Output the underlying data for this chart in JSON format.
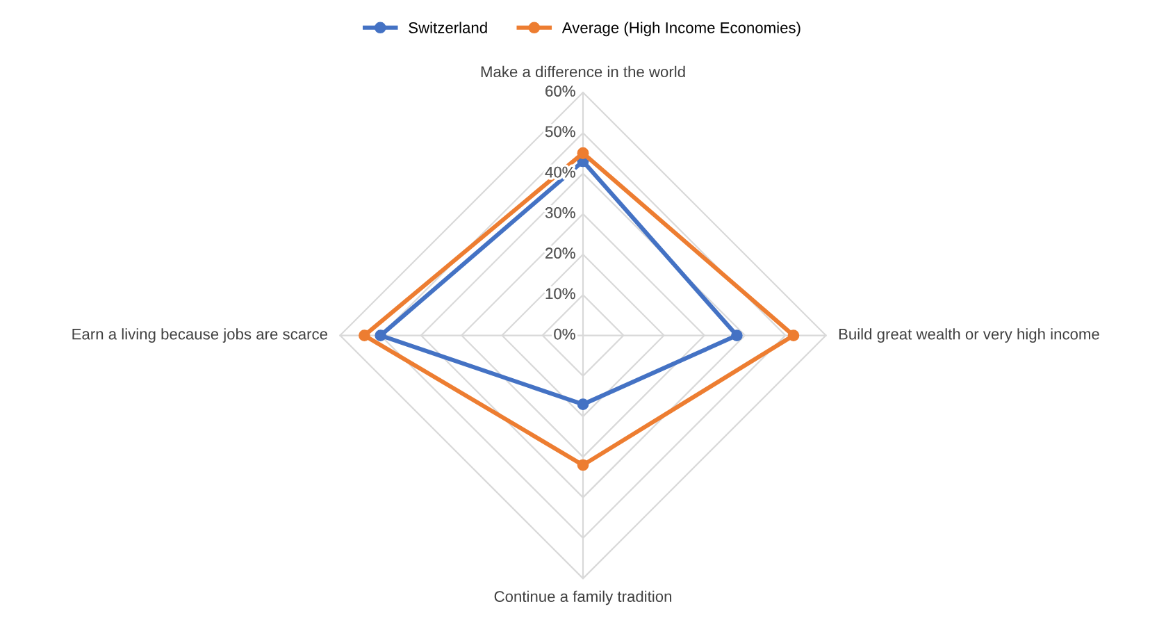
{
  "chart_data": {
    "type": "radar",
    "categories": [
      "Make a difference in the world",
      "Build great wealth or very high income",
      "Continue a family tradition",
      "Earn a living because jobs are scarce"
    ],
    "series": [
      {
        "name": "Switzerland",
        "color": "#4472c4",
        "values": [
          0.43,
          0.38,
          0.17,
          0.5
        ]
      },
      {
        "name": "Average (High Income Economies)",
        "color": "#ed7d31",
        "values": [
          0.45,
          0.52,
          0.32,
          0.54
        ]
      }
    ],
    "ylim": [
      0,
      0.6
    ],
    "yticks": [
      {
        "value": 0,
        "label": "0%"
      },
      {
        "value": 0.1,
        "label": "10%"
      },
      {
        "value": 0.2,
        "label": "20%"
      },
      {
        "value": 0.3,
        "label": "30%"
      },
      {
        "value": 0.4,
        "label": "40%"
      },
      {
        "value": 0.5,
        "label": "50%"
      },
      {
        "value": 0.6,
        "label": "60%"
      }
    ],
    "legend": "top",
    "marker": "circle",
    "line_style": "solid",
    "grid": true
  }
}
